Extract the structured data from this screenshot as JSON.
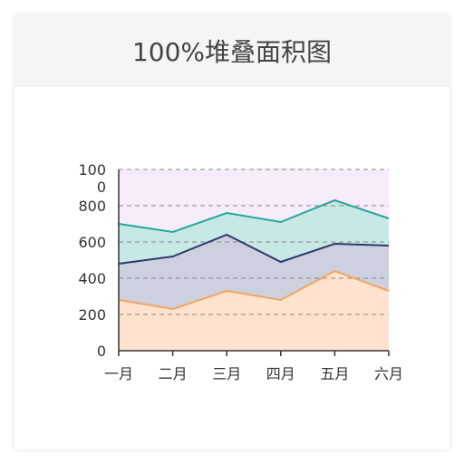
{
  "card": {
    "title": "100%堆叠面积图"
  },
  "chart_data": {
    "type": "area",
    "stacked": true,
    "categories": [
      "一月",
      "二月",
      "三月",
      "四月",
      "五月",
      "六月"
    ],
    "series": [
      {
        "values": [
          280,
          230,
          330,
          280,
          440,
          330
        ],
        "color": "#f4a460",
        "fill": "#ffe3cf"
      },
      {
        "values": [
          200,
          290,
          310,
          210,
          150,
          250
        ],
        "color": "#2e3a6e",
        "fill": "#cdd0de"
      },
      {
        "values": [
          220,
          135,
          120,
          220,
          240,
          150
        ],
        "color": "#26a69a",
        "fill": "#c8e8e6"
      },
      {
        "values": [
          300,
          345,
          240,
          300,
          170,
          270
        ],
        "color": "#e9c8f0",
        "fill": "#f6ecfa"
      }
    ],
    "y_ticks": [
      "0",
      "200",
      "400",
      "600",
      "800",
      "1000"
    ],
    "ylim": [
      0,
      1000
    ],
    "grid": true
  }
}
